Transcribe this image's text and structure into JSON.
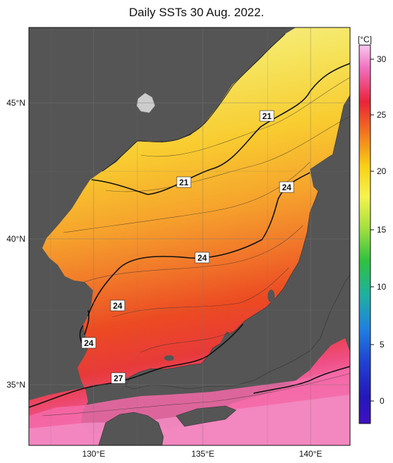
{
  "title": "Daily SSTs 30 Aug. 2022.",
  "axes": {
    "lat_labels": [
      "45°N",
      "40°N",
      "35°N"
    ],
    "lon_labels": [
      "130°E",
      "135°E",
      "140°E"
    ]
  },
  "colorbar": {
    "unit": "[°C]",
    "ticks": [
      "30",
      "25",
      "20",
      "15",
      "10",
      "5",
      "0"
    ],
    "range": [
      -2,
      32
    ]
  },
  "contour_labels": [
    "21",
    "21",
    "24",
    "24",
    "24",
    "24",
    "27"
  ],
  "colors": {
    "land": "#555555",
    "sea_cold": "#f5e95a",
    "sea_mid": "#f6b830",
    "sea_warm": "#ef5a22",
    "sea_hot": "#f46aa0"
  }
}
